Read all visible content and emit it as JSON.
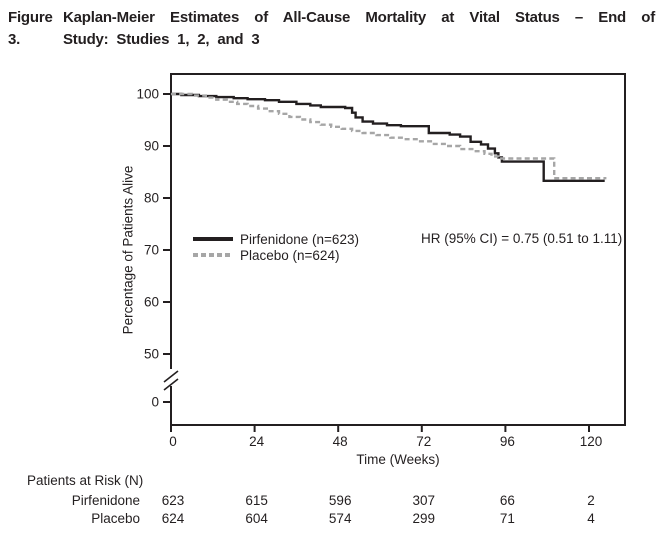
{
  "title": {
    "label": "Figure 3.",
    "line1": "Kaplan-Meier Estimates of All-Cause Mortality at Vital Status – End of",
    "line2": "Study: Studies 1, 2, and 3"
  },
  "colors": {
    "ink": "#231f20",
    "placebo_gray": "#a6a6a6",
    "background": "#ffffff"
  },
  "chart_data": {
    "type": "line",
    "subtype": "kaplan-meier-step",
    "title": "",
    "xlabel": "Time (Weeks)",
    "ylabel": "Percentage of Patients Alive",
    "xticks": [
      0,
      24,
      48,
      72,
      96,
      120
    ],
    "yticks": [
      100,
      90,
      80,
      70,
      60,
      50,
      0
    ],
    "axis_break": "y-axis broken between 0 and 50",
    "grid": false,
    "legend_position": "inside-left",
    "annotation": "HR (95% CI) = 0.75 (0.51 to 1.11)",
    "legend": [
      {
        "name": "Pirfenidone (n=623)",
        "style": "solid",
        "color": "#231f20"
      },
      {
        "name": "Placebo (n=624)",
        "style": "dashed",
        "color": "#a6a6a6"
      }
    ],
    "series": [
      {
        "name": "Pirfenidone",
        "color": "#231f20",
        "dash": "",
        "points": [
          [
            0,
            100
          ],
          [
            3,
            99.8
          ],
          [
            8,
            99.6
          ],
          [
            13,
            99.4
          ],
          [
            18,
            99.2
          ],
          [
            22,
            99.0
          ],
          [
            27,
            98.8
          ],
          [
            31,
            98.5
          ],
          [
            36,
            98.1
          ],
          [
            40,
            97.8
          ],
          [
            43,
            97.5
          ],
          [
            50,
            97.3
          ],
          [
            52,
            96.4
          ],
          [
            53,
            95.5
          ],
          [
            55,
            94.7
          ],
          [
            58,
            94.3
          ],
          [
            62,
            94.0
          ],
          [
            66,
            93.8
          ],
          [
            74,
            92.5
          ],
          [
            80,
            92.2
          ],
          [
            83,
            91.8
          ],
          [
            86,
            90.8
          ],
          [
            89,
            90.3
          ],
          [
            91,
            89.5
          ],
          [
            93,
            88.6
          ],
          [
            94,
            87.8
          ],
          [
            95,
            87.0
          ],
          [
            107,
            83.3
          ],
          [
            124.5,
            83.3
          ]
        ]
      },
      {
        "name": "Placebo",
        "color": "#a6a6a6",
        "dash": "5,3.2",
        "points": [
          [
            0,
            100
          ],
          [
            6,
            99.7
          ],
          [
            10,
            99.3
          ],
          [
            13,
            98.9
          ],
          [
            16,
            98.5
          ],
          [
            19,
            98.1
          ],
          [
            22,
            97.7
          ],
          [
            25,
            97.2
          ],
          [
            28,
            96.7
          ],
          [
            31,
            96.2
          ],
          [
            34,
            95.6
          ],
          [
            37,
            95.1
          ],
          [
            40,
            94.6
          ],
          [
            43,
            94.1
          ],
          [
            46,
            93.7
          ],
          [
            49,
            93.3
          ],
          [
            52,
            92.9
          ],
          [
            55,
            92.5
          ],
          [
            59,
            92.1
          ],
          [
            63,
            91.6
          ],
          [
            67,
            91.3
          ],
          [
            71,
            90.9
          ],
          [
            75,
            90.4
          ],
          [
            79,
            90.0
          ],
          [
            83,
            89.4
          ],
          [
            87,
            89.0
          ],
          [
            90,
            88.5
          ],
          [
            92,
            88.0
          ],
          [
            94,
            87.6
          ],
          [
            110,
            83.8
          ],
          [
            125,
            83.8
          ]
        ]
      }
    ]
  },
  "risk_table": {
    "title": "Patients at Risk (N)",
    "timepoints": [
      0,
      24,
      48,
      72,
      96,
      120
    ],
    "rows": [
      {
        "label": "Pirfenidone",
        "values": [
          "623",
          "615",
          "596",
          "307",
          "66",
          "2"
        ]
      },
      {
        "label": "Placebo",
        "values": [
          "624",
          "604",
          "574",
          "299",
          "71",
          "4"
        ]
      }
    ]
  }
}
